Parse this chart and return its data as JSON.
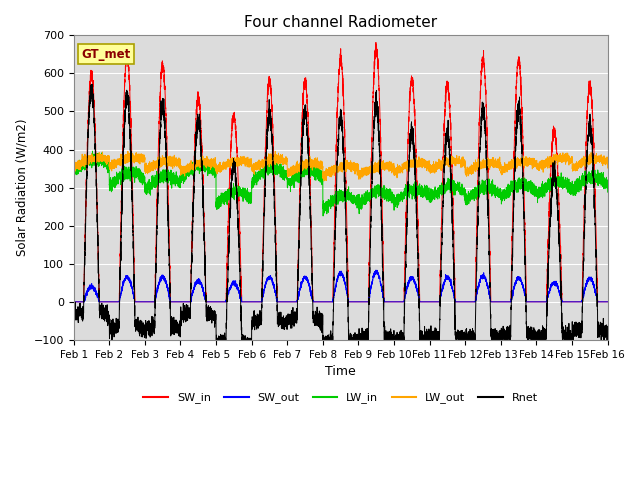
{
  "title": "Four channel Radiometer",
  "xlabel": "Time",
  "ylabel": "Solar Radiation (W/m2)",
  "ylim": [
    -100,
    700
  ],
  "xlim": [
    0,
    15
  ],
  "xtick_positions": [
    0,
    1,
    2,
    3,
    4,
    5,
    6,
    7,
    8,
    9,
    10,
    11,
    12,
    13,
    14,
    15
  ],
  "xtick_labels": [
    "Feb 1",
    "Feb 2",
    "Feb 3",
    "Feb 4",
    "Feb 5",
    "Feb 6",
    "Feb 7",
    "Feb 8",
    "Feb 9",
    "Feb 10",
    "Feb 11",
    "Feb 12",
    "Feb 13",
    "Feb 14",
    "Feb 15",
    "Feb 16"
  ],
  "ytick_values": [
    -100,
    0,
    100,
    200,
    300,
    400,
    500,
    600,
    700
  ],
  "background_color": "#dcdcdc",
  "legend_label": "GT_met",
  "series": {
    "SW_in": {
      "color": "#ff0000",
      "label": "SW_in"
    },
    "SW_out": {
      "color": "#0000ff",
      "label": "SW_out"
    },
    "LW_in": {
      "color": "#00cc00",
      "label": "LW_in"
    },
    "LW_out": {
      "color": "#ffa500",
      "label": "LW_out"
    },
    "Rnet": {
      "color": "#000000",
      "label": "Rnet"
    }
  },
  "sw_in_peaks": [
    600,
    645,
    623,
    535,
    488,
    580,
    580,
    638,
    665,
    585,
    570,
    640,
    635,
    448,
    572
  ],
  "sw_out_peaks": [
    40,
    65,
    65,
    55,
    50,
    65,
    65,
    75,
    78,
    63,
    65,
    68,
    62,
    50,
    62
  ],
  "lw_in_base": [
    355,
    320,
    310,
    340,
    270,
    330,
    325,
    260,
    270,
    275,
    285,
    280,
    290,
    295,
    308
  ],
  "lw_out_base": [
    363,
    365,
    355,
    352,
    355,
    360,
    348,
    342,
    342,
    350,
    355,
    350,
    355,
    362,
    360
  ],
  "num_days": 15,
  "n_points_per_day": 480,
  "figsize": [
    6.4,
    4.8
  ],
  "dpi": 100
}
